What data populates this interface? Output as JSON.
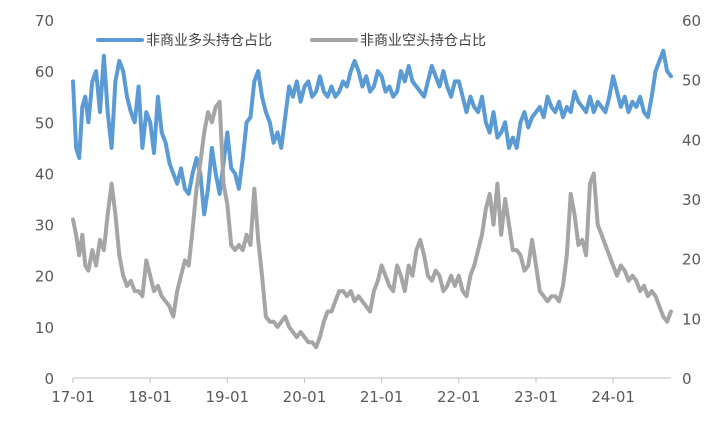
{
  "chart_data": {
    "type": "line",
    "title": "",
    "xlabel": "",
    "ylabel_left": "",
    "ylabel_right": "",
    "grid": false,
    "legend_position": "top",
    "x_tick_labels": [
      "17-01",
      "18-01",
      "19-01",
      "20-01",
      "21-01",
      "22-01",
      "23-01",
      "24-01"
    ],
    "x_range": [
      2017.0,
      2024.75
    ],
    "y_left": {
      "min": 0,
      "max": 70,
      "ticks": [
        0,
        10,
        20,
        30,
        40,
        50,
        60,
        70
      ]
    },
    "y_right": {
      "min": 0,
      "max": 60,
      "ticks": [
        0,
        10,
        20,
        30,
        40,
        50,
        60
      ]
    },
    "series": [
      {
        "name": "非商业多头持仓占比",
        "axis": "left",
        "color": "#5B9BD5",
        "points": [
          [
            2017.0,
            58
          ],
          [
            2017.04,
            45
          ],
          [
            2017.08,
            43
          ],
          [
            2017.12,
            53
          ],
          [
            2017.16,
            55
          ],
          [
            2017.2,
            50
          ],
          [
            2017.25,
            58
          ],
          [
            2017.3,
            60
          ],
          [
            2017.35,
            52
          ],
          [
            2017.4,
            63
          ],
          [
            2017.45,
            52
          ],
          [
            2017.5,
            45
          ],
          [
            2017.55,
            58
          ],
          [
            2017.6,
            62
          ],
          [
            2017.65,
            60
          ],
          [
            2017.7,
            55
          ],
          [
            2017.75,
            52
          ],
          [
            2017.8,
            50
          ],
          [
            2017.85,
            57
          ],
          [
            2017.9,
            45
          ],
          [
            2017.95,
            52
          ],
          [
            2018.0,
            50
          ],
          [
            2018.05,
            44
          ],
          [
            2018.1,
            55
          ],
          [
            2018.15,
            48
          ],
          [
            2018.2,
            46
          ],
          [
            2018.25,
            42
          ],
          [
            2018.3,
            40
          ],
          [
            2018.35,
            38
          ],
          [
            2018.4,
            41
          ],
          [
            2018.45,
            37
          ],
          [
            2018.5,
            36
          ],
          [
            2018.55,
            40
          ],
          [
            2018.6,
            43
          ],
          [
            2018.65,
            40
          ],
          [
            2018.7,
            32
          ],
          [
            2018.75,
            37
          ],
          [
            2018.8,
            45
          ],
          [
            2018.85,
            40
          ],
          [
            2018.9,
            36
          ],
          [
            2018.95,
            42
          ],
          [
            2019.0,
            48
          ],
          [
            2019.05,
            41
          ],
          [
            2019.1,
            40
          ],
          [
            2019.15,
            37
          ],
          [
            2019.2,
            43
          ],
          [
            2019.25,
            50
          ],
          [
            2019.3,
            51
          ],
          [
            2019.35,
            58
          ],
          [
            2019.4,
            60
          ],
          [
            2019.45,
            55
          ],
          [
            2019.5,
            52
          ],
          [
            2019.55,
            50
          ],
          [
            2019.6,
            46
          ],
          [
            2019.65,
            48
          ],
          [
            2019.7,
            45
          ],
          [
            2019.75,
            51
          ],
          [
            2019.8,
            57
          ],
          [
            2019.85,
            55
          ],
          [
            2019.9,
            58
          ],
          [
            2019.95,
            54
          ],
          [
            2020.0,
            57
          ],
          [
            2020.05,
            58
          ],
          [
            2020.1,
            55
          ],
          [
            2020.15,
            56
          ],
          [
            2020.2,
            59
          ],
          [
            2020.25,
            56
          ],
          [
            2020.3,
            55
          ],
          [
            2020.35,
            57
          ],
          [
            2020.4,
            55
          ],
          [
            2020.45,
            56
          ],
          [
            2020.5,
            58
          ],
          [
            2020.55,
            57
          ],
          [
            2020.6,
            60
          ],
          [
            2020.65,
            62
          ],
          [
            2020.7,
            60
          ],
          [
            2020.75,
            57
          ],
          [
            2020.8,
            59
          ],
          [
            2020.85,
            56
          ],
          [
            2020.9,
            57
          ],
          [
            2020.95,
            60
          ],
          [
            2021.0,
            59
          ],
          [
            2021.05,
            56
          ],
          [
            2021.1,
            57
          ],
          [
            2021.15,
            55
          ],
          [
            2021.2,
            56
          ],
          [
            2021.25,
            60
          ],
          [
            2021.3,
            58
          ],
          [
            2021.35,
            61
          ],
          [
            2021.4,
            58
          ],
          [
            2021.45,
            57
          ],
          [
            2021.5,
            56
          ],
          [
            2021.55,
            55
          ],
          [
            2021.6,
            58
          ],
          [
            2021.65,
            61
          ],
          [
            2021.7,
            59
          ],
          [
            2021.75,
            57
          ],
          [
            2021.8,
            60
          ],
          [
            2021.85,
            57
          ],
          [
            2021.9,
            55
          ],
          [
            2021.95,
            58
          ],
          [
            2022.0,
            58
          ],
          [
            2022.05,
            55
          ],
          [
            2022.1,
            52
          ],
          [
            2022.15,
            55
          ],
          [
            2022.2,
            53
          ],
          [
            2022.25,
            52
          ],
          [
            2022.3,
            55
          ],
          [
            2022.35,
            50
          ],
          [
            2022.4,
            48
          ],
          [
            2022.45,
            52
          ],
          [
            2022.5,
            47
          ],
          [
            2022.55,
            48
          ],
          [
            2022.6,
            50
          ],
          [
            2022.65,
            45
          ],
          [
            2022.7,
            47
          ],
          [
            2022.75,
            45
          ],
          [
            2022.8,
            50
          ],
          [
            2022.85,
            52
          ],
          [
            2022.9,
            49
          ],
          [
            2022.95,
            51
          ],
          [
            2023.0,
            52
          ],
          [
            2023.05,
            53
          ],
          [
            2023.1,
            51
          ],
          [
            2023.15,
            55
          ],
          [
            2023.2,
            53
          ],
          [
            2023.25,
            52
          ],
          [
            2023.3,
            54
          ],
          [
            2023.35,
            51
          ],
          [
            2023.4,
            53
          ],
          [
            2023.45,
            52
          ],
          [
            2023.5,
            56
          ],
          [
            2023.55,
            54
          ],
          [
            2023.6,
            53
          ],
          [
            2023.65,
            52
          ],
          [
            2023.7,
            55
          ],
          [
            2023.75,
            52
          ],
          [
            2023.8,
            54
          ],
          [
            2023.85,
            53
          ],
          [
            2023.9,
            52
          ],
          [
            2023.95,
            55
          ],
          [
            2024.0,
            59
          ],
          [
            2024.05,
            56
          ],
          [
            2024.1,
            53
          ],
          [
            2024.15,
            55
          ],
          [
            2024.2,
            52
          ],
          [
            2024.25,
            54
          ],
          [
            2024.3,
            53
          ],
          [
            2024.35,
            55
          ],
          [
            2024.4,
            52
          ],
          [
            2024.45,
            51
          ],
          [
            2024.5,
            55
          ],
          [
            2024.55,
            60
          ],
          [
            2024.6,
            62
          ],
          [
            2024.65,
            64
          ],
          [
            2024.7,
            60
          ],
          [
            2024.75,
            59
          ]
        ]
      },
      {
        "name": "非商业空头持仓占比",
        "axis": "left",
        "color": "#A5A5A5",
        "points": [
          [
            2017.0,
            31
          ],
          [
            2017.04,
            28
          ],
          [
            2017.08,
            24
          ],
          [
            2017.12,
            28
          ],
          [
            2017.16,
            22
          ],
          [
            2017.2,
            21
          ],
          [
            2017.25,
            25
          ],
          [
            2017.3,
            22
          ],
          [
            2017.35,
            27
          ],
          [
            2017.4,
            25
          ],
          [
            2017.45,
            32
          ],
          [
            2017.5,
            38
          ],
          [
            2017.55,
            32
          ],
          [
            2017.6,
            24
          ],
          [
            2017.65,
            20
          ],
          [
            2017.7,
            18
          ],
          [
            2017.75,
            19
          ],
          [
            2017.8,
            17
          ],
          [
            2017.85,
            17
          ],
          [
            2017.9,
            16
          ],
          [
            2017.95,
            23
          ],
          [
            2018.0,
            20
          ],
          [
            2018.05,
            17
          ],
          [
            2018.1,
            18
          ],
          [
            2018.15,
            16
          ],
          [
            2018.2,
            15
          ],
          [
            2018.25,
            14
          ],
          [
            2018.3,
            12
          ],
          [
            2018.35,
            17
          ],
          [
            2018.4,
            20
          ],
          [
            2018.45,
            23
          ],
          [
            2018.5,
            22
          ],
          [
            2018.55,
            29
          ],
          [
            2018.6,
            37
          ],
          [
            2018.65,
            42
          ],
          [
            2018.7,
            48
          ],
          [
            2018.75,
            52
          ],
          [
            2018.8,
            50
          ],
          [
            2018.85,
            53
          ],
          [
            2018.9,
            54
          ],
          [
            2018.95,
            38
          ],
          [
            2019.0,
            34
          ],
          [
            2019.05,
            26
          ],
          [
            2019.1,
            25
          ],
          [
            2019.15,
            26
          ],
          [
            2019.2,
            25
          ],
          [
            2019.25,
            28
          ],
          [
            2019.3,
            26
          ],
          [
            2019.35,
            37
          ],
          [
            2019.4,
            27
          ],
          [
            2019.45,
            20
          ],
          [
            2019.5,
            12
          ],
          [
            2019.55,
            11
          ],
          [
            2019.6,
            11
          ],
          [
            2019.65,
            10
          ],
          [
            2019.7,
            11
          ],
          [
            2019.75,
            12
          ],
          [
            2019.8,
            10
          ],
          [
            2019.85,
            9
          ],
          [
            2019.9,
            8
          ],
          [
            2019.95,
            9
          ],
          [
            2020.0,
            8
          ],
          [
            2020.05,
            7
          ],
          [
            2020.1,
            7
          ],
          [
            2020.15,
            6
          ],
          [
            2020.2,
            8
          ],
          [
            2020.25,
            11
          ],
          [
            2020.3,
            13
          ],
          [
            2020.35,
            13
          ],
          [
            2020.4,
            15
          ],
          [
            2020.45,
            17
          ],
          [
            2020.5,
            17
          ],
          [
            2020.55,
            16
          ],
          [
            2020.6,
            17
          ],
          [
            2020.65,
            15
          ],
          [
            2020.7,
            16
          ],
          [
            2020.75,
            15
          ],
          [
            2020.8,
            14
          ],
          [
            2020.85,
            13
          ],
          [
            2020.9,
            17
          ],
          [
            2020.95,
            19
          ],
          [
            2021.0,
            22
          ],
          [
            2021.05,
            20
          ],
          [
            2021.1,
            18
          ],
          [
            2021.15,
            17
          ],
          [
            2021.2,
            22
          ],
          [
            2021.25,
            20
          ],
          [
            2021.3,
            17
          ],
          [
            2021.35,
            22
          ],
          [
            2021.4,
            20
          ],
          [
            2021.45,
            25
          ],
          [
            2021.5,
            27
          ],
          [
            2021.55,
            24
          ],
          [
            2021.6,
            20
          ],
          [
            2021.65,
            19
          ],
          [
            2021.7,
            21
          ],
          [
            2021.75,
            20
          ],
          [
            2021.8,
            17
          ],
          [
            2021.85,
            18
          ],
          [
            2021.9,
            20
          ],
          [
            2021.95,
            18
          ],
          [
            2022.0,
            20
          ],
          [
            2022.05,
            17
          ],
          [
            2022.1,
            16
          ],
          [
            2022.15,
            20
          ],
          [
            2022.2,
            22
          ],
          [
            2022.25,
            25
          ],
          [
            2022.3,
            28
          ],
          [
            2022.35,
            33
          ],
          [
            2022.4,
            36
          ],
          [
            2022.45,
            30
          ],
          [
            2022.5,
            38
          ],
          [
            2022.55,
            28
          ],
          [
            2022.6,
            35
          ],
          [
            2022.65,
            30
          ],
          [
            2022.7,
            25
          ],
          [
            2022.75,
            25
          ],
          [
            2022.8,
            24
          ],
          [
            2022.85,
            21
          ],
          [
            2022.9,
            22
          ],
          [
            2022.95,
            27
          ],
          [
            2023.0,
            22
          ],
          [
            2023.05,
            17
          ],
          [
            2023.1,
            16
          ],
          [
            2023.15,
            15
          ],
          [
            2023.2,
            16
          ],
          [
            2023.25,
            16
          ],
          [
            2023.3,
            15
          ],
          [
            2023.35,
            18
          ],
          [
            2023.4,
            24
          ],
          [
            2023.45,
            36
          ],
          [
            2023.5,
            32
          ],
          [
            2023.55,
            26
          ],
          [
            2023.6,
            27
          ],
          [
            2023.65,
            24
          ],
          [
            2023.7,
            38
          ],
          [
            2023.75,
            40
          ],
          [
            2023.8,
            30
          ],
          [
            2023.85,
            28
          ],
          [
            2023.9,
            26
          ],
          [
            2023.95,
            24
          ],
          [
            2024.0,
            22
          ],
          [
            2024.05,
            20
          ],
          [
            2024.1,
            22
          ],
          [
            2024.15,
            21
          ],
          [
            2024.2,
            19
          ],
          [
            2024.25,
            20
          ],
          [
            2024.3,
            19
          ],
          [
            2024.35,
            17
          ],
          [
            2024.4,
            18
          ],
          [
            2024.45,
            16
          ],
          [
            2024.5,
            17
          ],
          [
            2024.55,
            16
          ],
          [
            2024.6,
            14
          ],
          [
            2024.65,
            12
          ],
          [
            2024.7,
            11
          ],
          [
            2024.75,
            13
          ]
        ]
      }
    ]
  }
}
